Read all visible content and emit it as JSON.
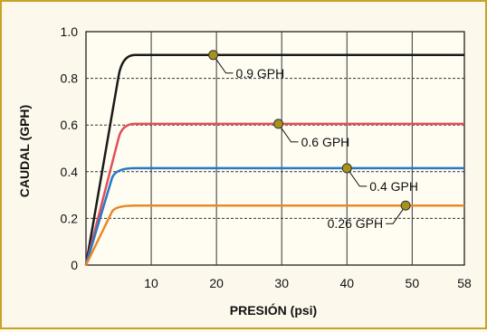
{
  "chart_data": {
    "type": "line",
    "xlabel": "PRESIÓN (psi)",
    "ylabel": "CAUDAL (GPH)",
    "xlim": [
      0,
      58
    ],
    "ylim": [
      0,
      1.0
    ],
    "x_ticks": [
      "10",
      "20",
      "30",
      "40",
      "50",
      "58"
    ],
    "x_tick_values": [
      10,
      20,
      30,
      40,
      50,
      58
    ],
    "y_ticks": [
      "0",
      "0.2",
      "0.4",
      "0.6",
      "0.8",
      "1.0"
    ],
    "y_tick_values": [
      0,
      0.2,
      0.4,
      0.6,
      0.8,
      1.0
    ],
    "grid": true,
    "series": [
      {
        "label": "0.9 GPH",
        "color": "#1a1a1a",
        "values": [
          0.9,
          0.9
        ],
        "x": [
          0,
          58
        ],
        "rise_to": 5,
        "plateau_from": 7.5,
        "marker_x": 19.5,
        "marker_y": 0.9
      },
      {
        "label": "0.6 GPH",
        "color": "#e0505a",
        "values": [
          0.605,
          0.605
        ],
        "x": [
          0,
          58
        ],
        "rise_to": 5,
        "plateau_from": 7.5,
        "marker_x": 29.5,
        "marker_y": 0.605
      },
      {
        "label": "0.4 GPH",
        "color": "#2878c8",
        "values": [
          0.415,
          0.415
        ],
        "x": [
          0,
          58
        ],
        "rise_to": 4,
        "plateau_from": 7.5,
        "marker_x": 40,
        "marker_y": 0.415
      },
      {
        "label": "0.26 GPH",
        "color": "#e8892a",
        "values": [
          0.255,
          0.255
        ],
        "x": [
          0,
          58
        ],
        "rise_to": 4,
        "plateau_from": 7.5,
        "marker_x": 49,
        "marker_y": 0.255
      }
    ],
    "marker_color": "#a8921a"
  }
}
